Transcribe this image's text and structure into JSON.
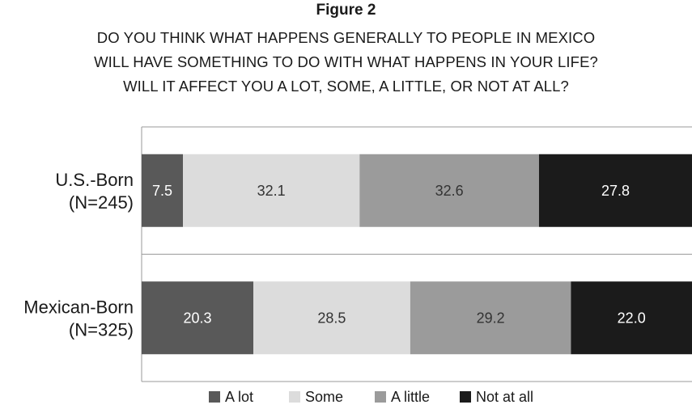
{
  "header": {
    "figure_label": "Figure 2",
    "question_lines": [
      "DO YOU THINK WHAT HAPPENS GENERALLY TO PEOPLE IN MEXICO",
      "WILL HAVE SOMETHING TO DO WITH WHAT HAPPENS IN YOUR LIFE?",
      "WILL IT AFFECT YOU A LOT, SOME, A LITTLE, OR NOT AT ALL?"
    ]
  },
  "chart_data": {
    "type": "bar",
    "orientation": "horizontal",
    "stacked": true,
    "categories": [
      {
        "name": "U.S.-Born",
        "n": "(N=245)"
      },
      {
        "name": "Mexican-Born",
        "n": "(N=325)"
      }
    ],
    "series": [
      {
        "name": "A lot",
        "color": "#595959",
        "values": [
          7.5,
          20.3
        ],
        "labels": [
          "7.5",
          "20.3"
        ]
      },
      {
        "name": "Some",
        "color": "#dcdcdc",
        "values": [
          32.1,
          28.5
        ],
        "labels": [
          "32.1",
          "28.5"
        ]
      },
      {
        "name": "A little",
        "color": "#9b9b9b",
        "values": [
          32.6,
          29.2
        ],
        "labels": [
          "32.6",
          "29.2"
        ]
      },
      {
        "name": "Not at all",
        "color": "#1b1b1b",
        "values": [
          27.8,
          22.0
        ],
        "labels": [
          "27.8",
          "22.0"
        ]
      }
    ],
    "xlim": [
      0,
      100
    ],
    "legend_position": "bottom",
    "grid": false
  }
}
